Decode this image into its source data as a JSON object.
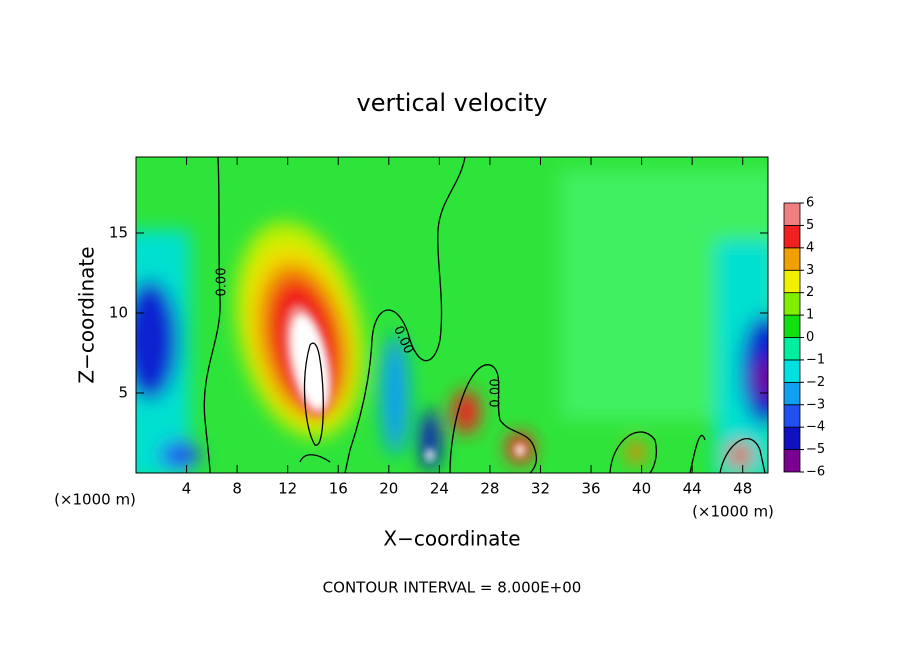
{
  "chart_data": {
    "type": "contour",
    "title": "vertical velocity",
    "x_label": "X−coordinate",
    "y_label": "Z−coordinate",
    "x_unit": "(×1000 m)",
    "x_unit_right": "(×1000 m)",
    "footnote": "CONTOUR INTERVAL = 8.000E+00",
    "contour_labels": [
      "0.00",
      "0.00",
      "0.00"
    ],
    "xlim": [
      0,
      50
    ],
    "ylim": [
      0,
      19.75
    ],
    "xticks": [
      4,
      8,
      12,
      16,
      20,
      24,
      28,
      32,
      36,
      40,
      44,
      48
    ],
    "yticks": [
      5,
      10,
      15
    ],
    "colorbar": {
      "ticks": [
        {
          "value": -6,
          "label": "−6"
        },
        {
          "value": -5,
          "label": "−5"
        },
        {
          "value": -4,
          "label": "−4"
        },
        {
          "value": -3,
          "label": "−3"
        },
        {
          "value": -2,
          "label": "−2"
        },
        {
          "value": -1,
          "label": "−1"
        },
        0,
        1,
        2,
        3,
        4,
        5,
        6
      ],
      "colors": [
        "#7a0090",
        "#1010c0",
        "#2050f0",
        "#10a0f0",
        "#00e0e0",
        "#00f0a0",
        "#10e010",
        "#80f000",
        "#f0f000",
        "#f0a000",
        "#f02020",
        "#f08080"
      ]
    }
  }
}
